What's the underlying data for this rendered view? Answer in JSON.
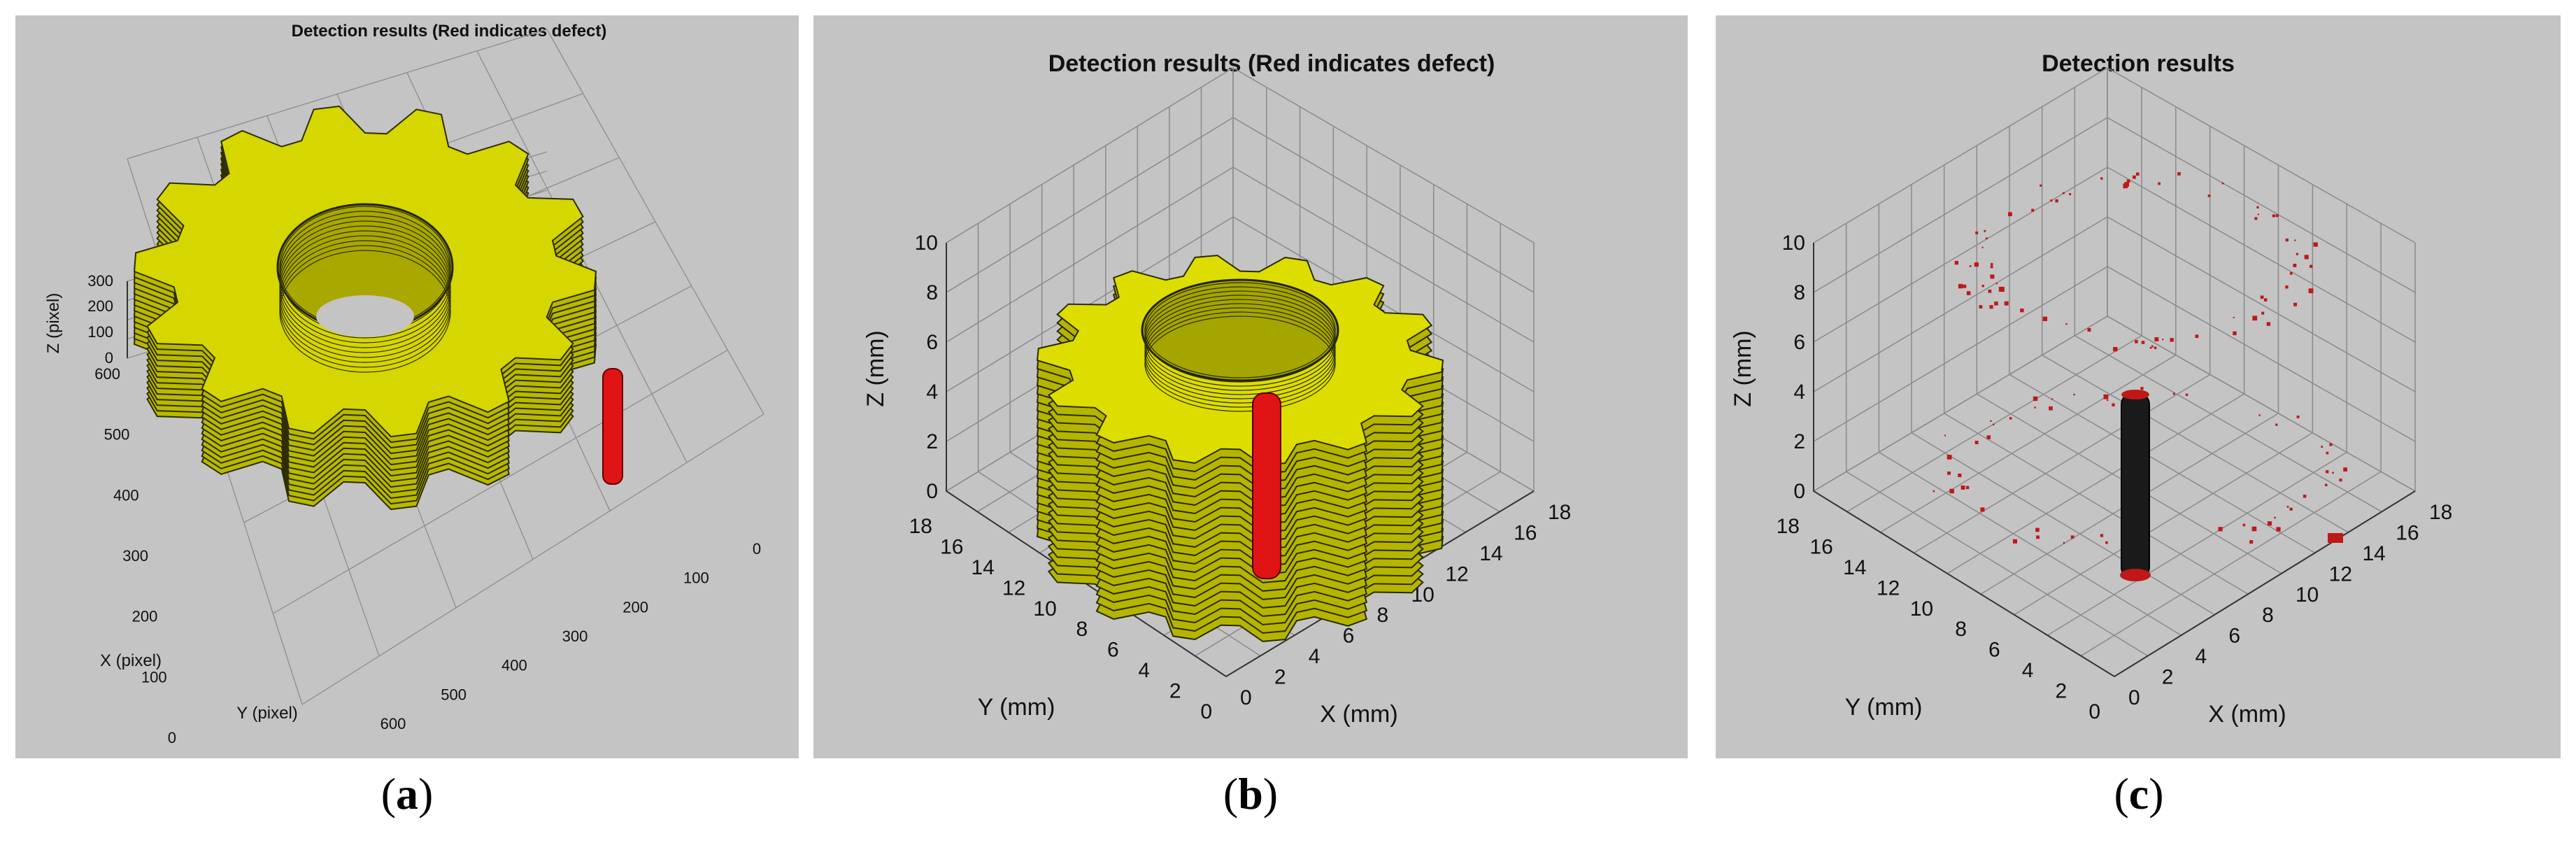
{
  "captions": [
    "a",
    "b",
    "c"
  ],
  "chart_data": [
    {
      "type": "3d-surface",
      "title": "Detection results (Red indicates defect)",
      "xlabel": "X (pixel)",
      "ylabel": "Y (pixel)",
      "zlabel": "Z (pixel)",
      "x_ticks": [
        "0",
        "100",
        "200",
        "300",
        "400",
        "500",
        "600"
      ],
      "y_ticks": [
        "600",
        "500",
        "400",
        "300",
        "200",
        "100",
        "0"
      ],
      "z_ticks": [
        "0",
        "100",
        "200",
        "300"
      ],
      "object": "gear",
      "object_color": "#e6e600",
      "defect_color": "#e01414",
      "grid": true
    },
    {
      "type": "3d-surface",
      "title": "Detection results (Red indicates defect)",
      "xlabel": "X (mm)",
      "ylabel": "Y (mm)",
      "zlabel": "Z (mm)",
      "x_ticks": [
        "0",
        "2",
        "4",
        "6",
        "8",
        "10",
        "12",
        "14",
        "16",
        "18"
      ],
      "y_ticks": [
        "18",
        "16",
        "14",
        "12",
        "10",
        "8",
        "6",
        "4",
        "2",
        "0"
      ],
      "z_ticks": [
        "0",
        "2",
        "4",
        "6",
        "8",
        "10"
      ],
      "object": "gear",
      "object_color": "#e6e600",
      "defect_color": "#e01414",
      "grid": true
    },
    {
      "type": "3d-scatter",
      "title": "Detection results",
      "xlabel": "X (mm)",
      "ylabel": "Y (mm)",
      "zlabel": "Z (mm)",
      "x_ticks": [
        "0",
        "2",
        "4",
        "6",
        "8",
        "10",
        "12",
        "14",
        "16",
        "18"
      ],
      "y_ticks": [
        "18",
        "16",
        "14",
        "12",
        "10",
        "8",
        "6",
        "4",
        "2",
        "0"
      ],
      "z_ticks": [
        "0",
        "2",
        "4",
        "6",
        "8",
        "10"
      ],
      "object": "defect points",
      "object_color": "#1a1a1a",
      "defect_color": "#c01818",
      "grid": true
    }
  ]
}
